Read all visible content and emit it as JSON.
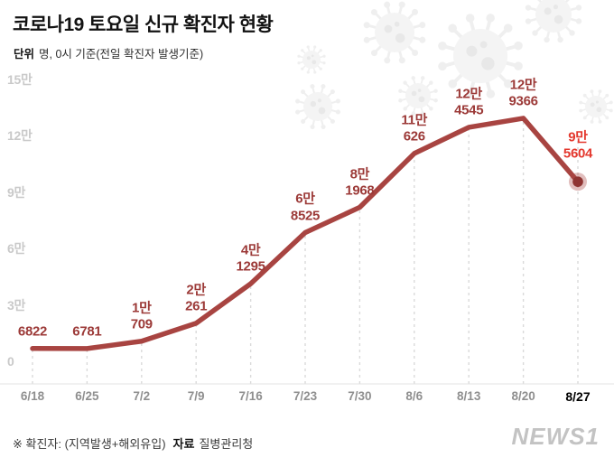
{
  "header": {
    "title": "코로나19 토요일 신규 확진자 현황",
    "unit_label": "단위",
    "unit_note": "명, 0시 기준(전일 확진자 발생기준)"
  },
  "footer": {
    "note_prefix": "※ 확진자: (지역발생+해외유입)",
    "source_label": "자료",
    "source_value": "질병관리청",
    "logo_text": "NEWS1"
  },
  "chart_data": {
    "type": "line",
    "title": "코로나19 토요일 신규 확진자 현황",
    "unit": "명, 0시 기준(전일 확진자 발생기준)",
    "x": [
      "6/18",
      "6/25",
      "7/2",
      "7/9",
      "7/16",
      "7/23",
      "7/30",
      "8/6",
      "8/13",
      "8/20",
      "8/27"
    ],
    "values": [
      6822,
      6781,
      10709,
      20261,
      41295,
      68525,
      81968,
      110626,
      124545,
      129366,
      95604
    ],
    "point_labels": [
      [
        "6822"
      ],
      [
        "6781"
      ],
      [
        "1만",
        "709"
      ],
      [
        "2만",
        "261"
      ],
      [
        "4만",
        "1295"
      ],
      [
        "6만",
        "8525"
      ],
      [
        "8만",
        "1968"
      ],
      [
        "11만",
        "626"
      ],
      [
        "12만",
        "4545"
      ],
      [
        "12만",
        "9366"
      ],
      [
        "9만",
        "5604"
      ]
    ],
    "yticks": [
      "15만",
      "12만",
      "9만",
      "6만",
      "3만",
      "0"
    ],
    "ytick_values": [
      150000,
      120000,
      90000,
      60000,
      30000,
      0
    ],
    "ylim": [
      0,
      150000
    ],
    "grid": "dashed-vertical",
    "legend": "none",
    "line_color": "#a84441",
    "label_color": "#9c3a38",
    "highlight_color": "#e4382e",
    "highlight_index": 10
  }
}
